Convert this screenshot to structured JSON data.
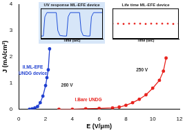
{
  "chart_data": [
    {
      "type": "scatter",
      "x_label": "E (V/μm)",
      "y_label": "J (mA/cm²)",
      "xlim": [
        0,
        12
      ],
      "ylim": [
        0,
        4
      ],
      "xticks": [
        0,
        2,
        4,
        6,
        8,
        10,
        12
      ],
      "yticks": [
        0,
        1,
        2,
        3,
        4
      ],
      "grid": false,
      "series": [
        {
          "color": "#e8231e",
          "marker": "circle",
          "line_style": "solid",
          "x": [
            3,
            4,
            5,
            6,
            7,
            7.5,
            8,
            8.5,
            9,
            9.5,
            10,
            10.5,
            10.8,
            11
          ],
          "values": [
            0,
            0,
            0.02,
            0.03,
            0.05,
            0.08,
            0.15,
            0.25,
            0.38,
            0.55,
            0.8,
            1.1,
            1.45,
            1.95
          ]
        },
        {
          "color": "#1f3fd0",
          "marker": "circle",
          "line_style": "solid",
          "x": [
            0.8,
            1.0,
            1.2,
            1.4,
            1.6,
            1.8,
            2.0,
            2.1,
            2.2,
            2.3
          ],
          "values": [
            0,
            0.02,
            0.05,
            0.1,
            0.25,
            0.5,
            0.9,
            1.2,
            1.5,
            2.3
          ]
        }
      ],
      "annotations": [
        {
          "text": "II.ML-EFE",
          "x": 1.05,
          "y": 1.6,
          "color": "#1f3fd0"
        },
        {
          "text": "UNDG device",
          "x": 1.05,
          "y": 1.35,
          "color": "#1f3fd0"
        },
        {
          "text": "I.Bare UNDG",
          "x": 5.2,
          "y": 0.35,
          "color": "#e8231e"
        },
        {
          "text": "260 V",
          "x": 3.6,
          "y": 0.9,
          "color": "#222222"
        },
        {
          "text": "250 V",
          "x": 9.2,
          "y": 1.5,
          "color": "#222222"
        }
      ]
    },
    {
      "type": "line",
      "title": "UV response ML-EFE device",
      "x_label": "Time (sec)",
      "xlim": [
        0,
        120
      ],
      "ylim": [
        0,
        1.1
      ],
      "tick_labels": false,
      "grid": false,
      "series": [
        {
          "color": "#1f4fd8",
          "marker": "none",
          "line_style": "solid",
          "x": [
            0,
            5,
            8,
            12,
            30,
            33,
            37,
            45,
            50,
            53,
            57,
            75,
            78,
            82,
            90,
            95,
            98,
            102,
            120
          ],
          "values": [
            0.1,
            0.1,
            0.8,
            0.95,
            0.95,
            0.3,
            0.12,
            0.1,
            0.1,
            0.8,
            0.95,
            0.95,
            0.3,
            0.12,
            0.1,
            0.1,
            0.8,
            0.95,
            0.95
          ]
        }
      ]
    },
    {
      "type": "scatter",
      "title": "Life time ML-EFE device",
      "x_label": "Time (sec)",
      "xlim": [
        0,
        3600
      ],
      "ylim": [
        0,
        1
      ],
      "tick_labels": false,
      "grid": false,
      "series": [
        {
          "color": "#e8231e",
          "marker": "circle",
          "line_style": "none",
          "x": [
            0,
            300,
            600,
            900,
            1200,
            1500,
            1800,
            2100,
            2400,
            2700,
            3000,
            3300,
            3600
          ],
          "values": [
            0.5,
            0.5,
            0.49,
            0.5,
            0.5,
            0.5,
            0.49,
            0.5,
            0.5,
            0.5,
            0.5,
            0.49,
            0.5
          ]
        }
      ]
    }
  ]
}
